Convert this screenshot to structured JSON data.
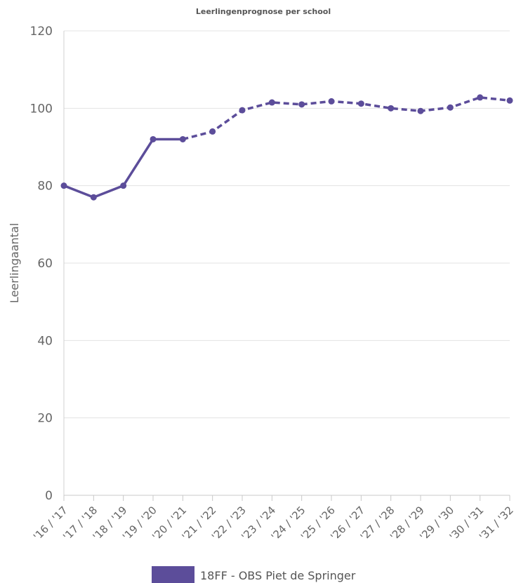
{
  "chart_data": {
    "type": "line",
    "title": "Leerlingenprognose per school",
    "xlabel": "",
    "ylabel": "Leerlingaantal",
    "ylim": [
      0,
      120
    ],
    "yticks": [
      0,
      20,
      40,
      60,
      80,
      100,
      120
    ],
    "grid": true,
    "legend_position": "bottom",
    "categories": [
      "'16 / '17",
      "'17 / '18",
      "'18 / '19",
      "'19 / '20",
      "'20 / '21",
      "'21 / '22",
      "'22 / '23",
      "'23 / '24",
      "'24 / '25",
      "'25 / '26",
      "'26 / '27",
      "'27 / '28",
      "'28 / '29",
      "'29 / '30",
      "'30 / '31",
      "'31 / '32"
    ],
    "series": [
      {
        "name": "18FF - OBS Piet de Springer",
        "color": "#5c4d9a",
        "values": [
          80,
          77,
          80,
          92,
          92,
          94,
          99.5,
          101.5,
          101,
          101.8,
          101.2,
          100,
          99.3,
          100.2,
          102.8,
          102
        ],
        "actual_until_index": 4,
        "style_actual": "solid",
        "style_forecast": "dashed"
      }
    ]
  }
}
